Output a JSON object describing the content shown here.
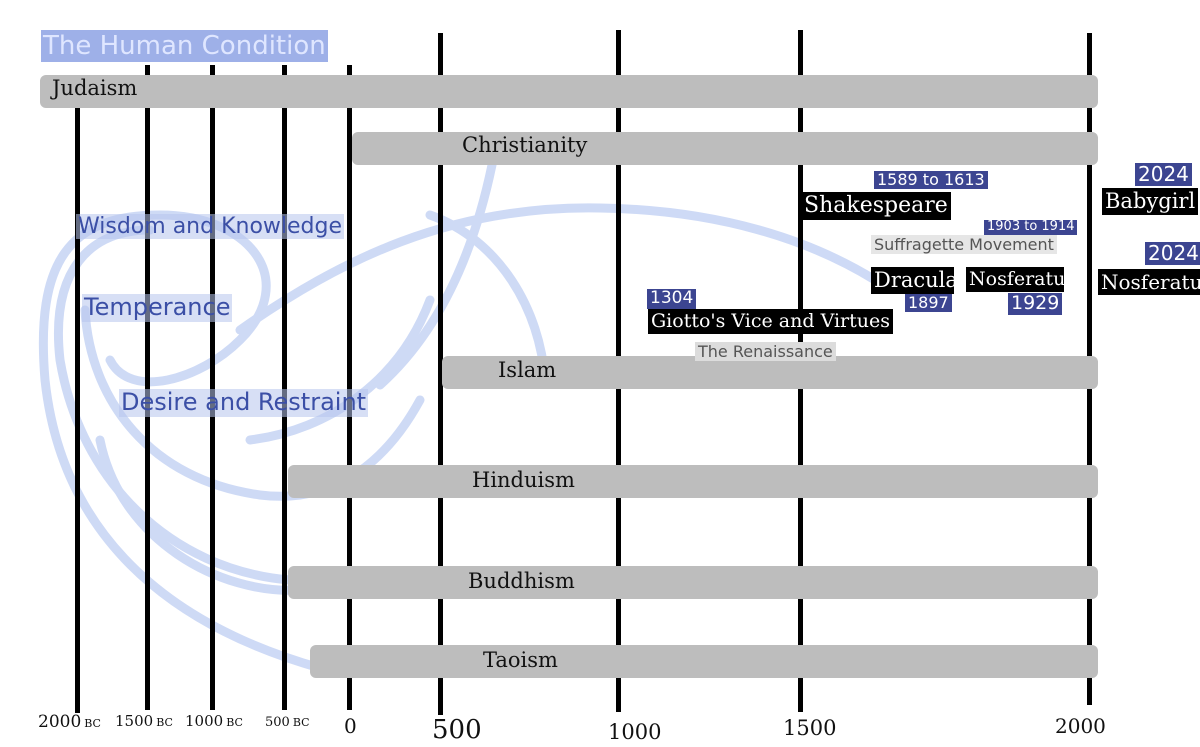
{
  "title": "The Human Condition",
  "axis_ticks": [
    {
      "year": "2000",
      "era": "BC"
    },
    {
      "year": "1500",
      "era": "BC"
    },
    {
      "year": "1000",
      "era": "BC"
    },
    {
      "year": "500",
      "era": "BC"
    },
    {
      "year": "0",
      "era": ""
    },
    {
      "year": "500",
      "era": ""
    },
    {
      "year": "1000",
      "era": ""
    },
    {
      "year": "1500",
      "era": ""
    },
    {
      "year": "2000",
      "era": ""
    }
  ],
  "religions": {
    "judaism": "Judaism",
    "christianity": "Christianity",
    "islam": "Islam",
    "hinduism": "Hinduism",
    "buddhism": "Buddhism",
    "taoism": "Taoism"
  },
  "themes": {
    "wisdom": "Wisdom and Knowledge",
    "temperance": "Temperance",
    "desire": "Desire and Restraint"
  },
  "events": {
    "shakespeare": {
      "label": "Shakespeare",
      "date": "1589 to 1613"
    },
    "suffragette": {
      "label": "Suffragette Movement",
      "date": "1903 to 1914"
    },
    "dracula": {
      "label": "Dracula",
      "date": "1897"
    },
    "nosferatu_1929": {
      "label": "Nosferatu",
      "date": "1929"
    },
    "giotto": {
      "label": "Giotto's Vice and Virtues",
      "date": "1304"
    },
    "renaissance": {
      "label": "The Renaissance"
    },
    "babygirl": {
      "label": "Babygirl",
      "date": "2024"
    },
    "nosferatu_2024": {
      "label": "Nosferatu",
      "date": "2024"
    }
  },
  "colors": {
    "band": "#bdbdbd",
    "theme_highlight": "#b7c4ec",
    "date_tag": "#3c4591",
    "stroke": "#c9d6f5"
  }
}
